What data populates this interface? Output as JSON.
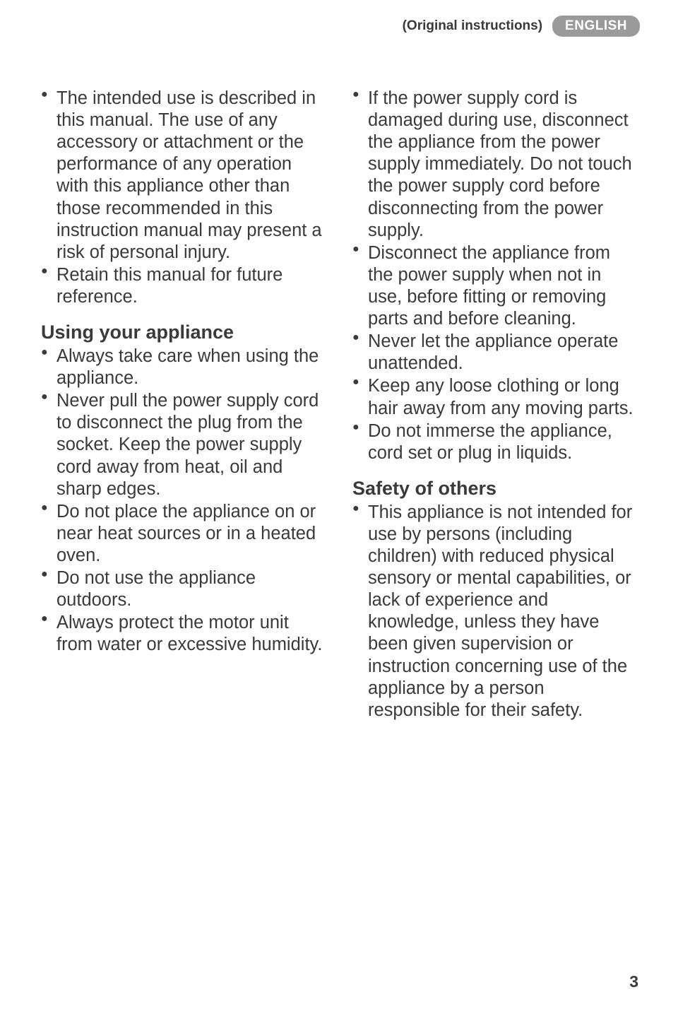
{
  "header": {
    "original_instructions": "(Original instructions)",
    "language": "ENGLISH"
  },
  "page_number": "3",
  "left_column": {
    "items_top": [
      "The intended use is described in this manual. The use of any accessory or attachment or the performance of any operation with this appliance other than those recommended in this instruction manual may present a risk of personal injury.",
      "Retain this manual for future reference."
    ],
    "heading1": "Using your appliance",
    "items_using": [
      "Always take care when using the appliance.",
      "Never pull the power supply cord to disconnect the plug from the socket. Keep the power supply cord away from heat, oil and sharp edges.",
      "Do not place the appliance on or near heat sources or in a heated oven.",
      "Do not use the appliance outdoors.",
      "Always protect the motor unit from water or excessive humidity."
    ]
  },
  "right_column": {
    "items_top": [
      "If the power supply cord is damaged during use, disconnect the appliance from the power supply immediately. Do not touch the power supply cord before disconnecting from the power supply.",
      "Disconnect the appliance from the power supply when not in use, before fitting or removing parts and before cleaning.",
      "Never let the appliance operate unattended.",
      "Keep any loose clothing or long hair away from any moving parts.",
      "Do not immerse the appliance, cord set or plug in liquids."
    ],
    "heading1": "Safety of others",
    "items_safety": [
      "This appliance is not intended for use by persons (including children) with reduced physical sensory or mental capabilities, or lack of experience and knowledge, unless they have been given supervision or instruction concerning use of the appliance by a person responsible for their safety."
    ]
  }
}
